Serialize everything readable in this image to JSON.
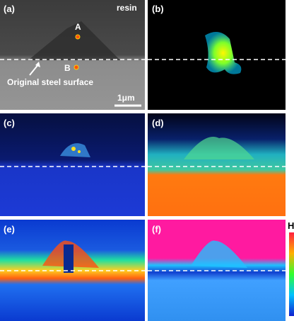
{
  "panels": [
    {
      "label": "(a)",
      "annotations": {
        "material": "resin",
        "point_a": "A",
        "point_b": "B",
        "surface": "Original steel surface",
        "scale": "1μm"
      }
    },
    {
      "label": "(b)"
    },
    {
      "label": "(c)"
    },
    {
      "label": "(d)"
    },
    {
      "label": "(e)"
    },
    {
      "label": "(f)"
    }
  ],
  "colorbar": {
    "high": "H"
  }
}
